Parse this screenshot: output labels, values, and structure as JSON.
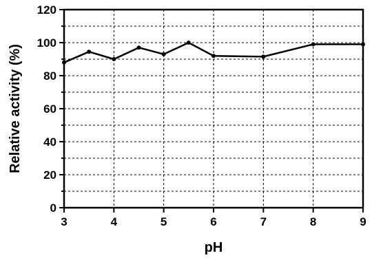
{
  "chart_data": {
    "type": "line",
    "xlabel": "pH",
    "ylabel": "Relative activity (%)",
    "xlim": [
      3,
      9
    ],
    "ylim": [
      0,
      120
    ],
    "x_ticks": [
      3,
      4,
      5,
      6,
      7,
      8,
      9
    ],
    "y_ticks": [
      0,
      20,
      40,
      60,
      80,
      100,
      120
    ],
    "grid": true,
    "series": [
      {
        "x": [
          3,
          3.5,
          4,
          4.5,
          5,
          5.5,
          6,
          7,
          8,
          9
        ],
        "values": [
          88,
          94.5,
          90,
          97,
          93,
          100,
          92,
          91.5,
          99,
          99
        ]
      }
    ]
  }
}
